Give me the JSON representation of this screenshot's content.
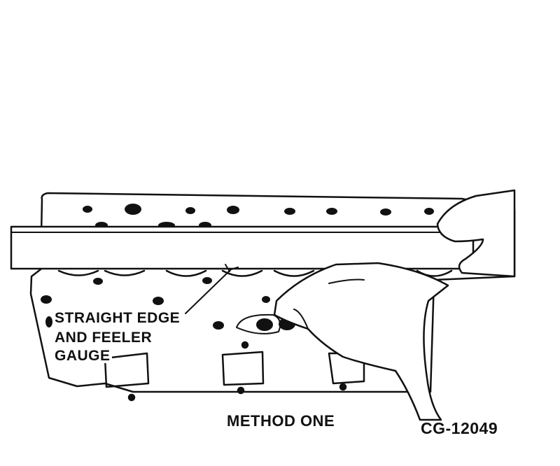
{
  "figure": {
    "callout_lines": [
      "STRAIGHT EDGE",
      "AND FEELER",
      "GAUGE"
    ],
    "caption": "METHOD ONE",
    "figure_id": "CG-12049"
  },
  "colors": {
    "ink": "#111111",
    "paper": "#ffffff"
  }
}
